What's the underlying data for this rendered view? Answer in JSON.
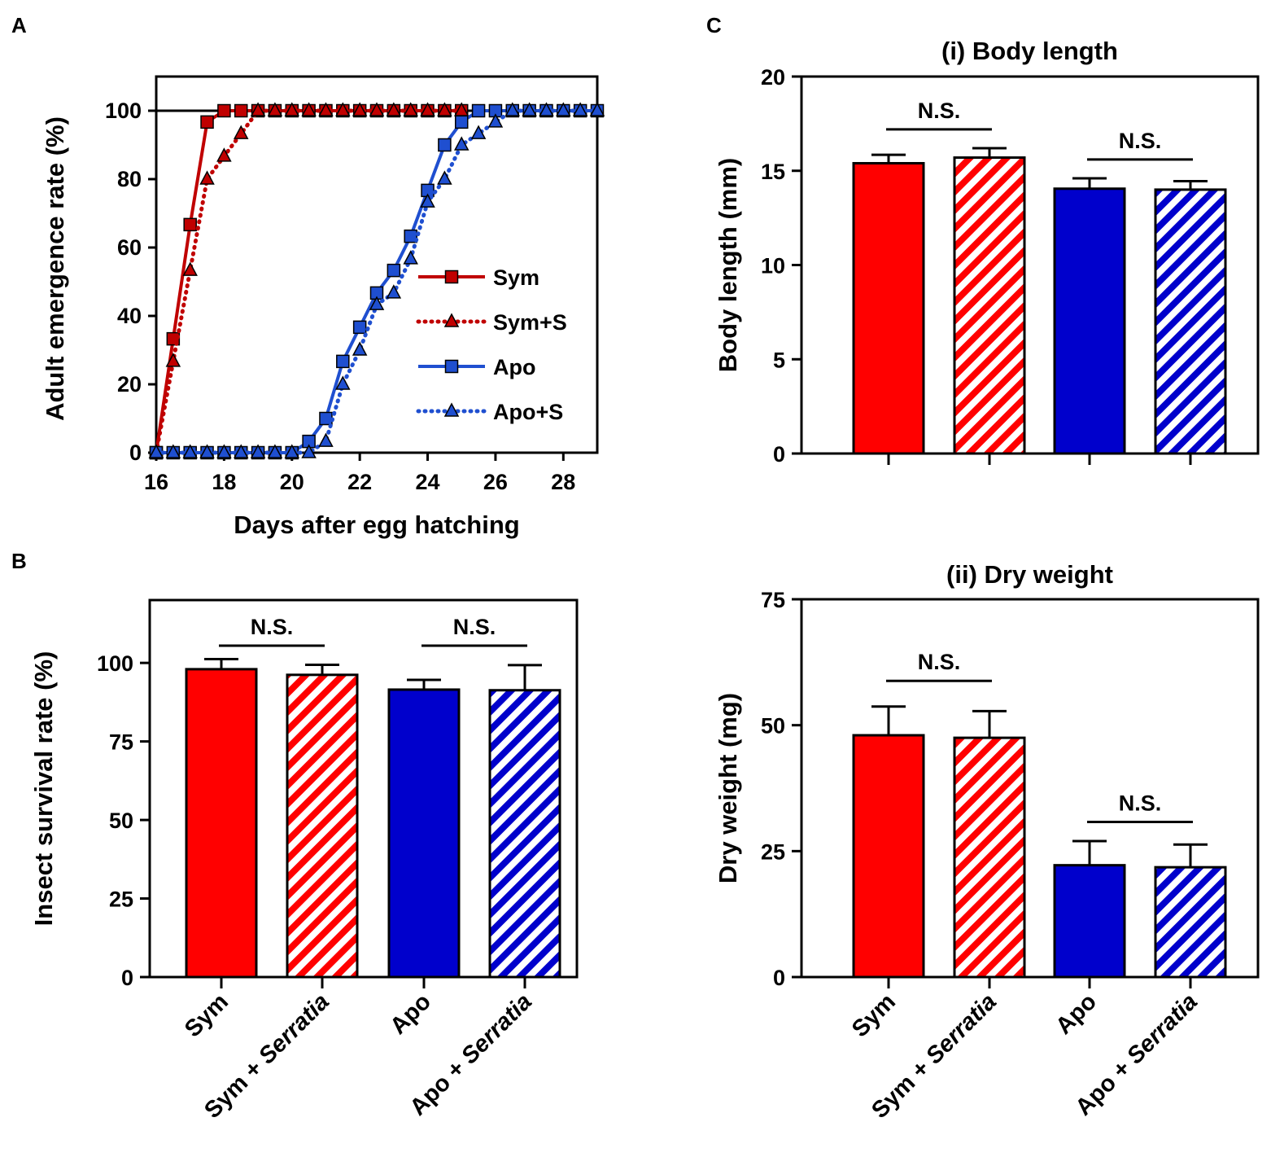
{
  "figure": {
    "panel_letters": [
      "A",
      "B",
      "C"
    ],
    "colors": {
      "sym": "#ff0000",
      "apo": "#0000cc",
      "sym_line": "#c00000",
      "apo_line": "#1f4fd0",
      "stripe_bg": "#ffffff"
    }
  },
  "chart_data": [
    {
      "id": "A",
      "type": "line",
      "title": "",
      "xlabel": "Days after egg hatching",
      "ylabel": "Adult emergence rate (%)",
      "xlim": [
        16,
        29
      ],
      "ylim": [
        0,
        110
      ],
      "xticks": [
        16,
        18,
        20,
        22,
        24,
        26,
        28
      ],
      "yticks": [
        0,
        20,
        40,
        60,
        80,
        100
      ],
      "reference_line": 100,
      "legend_position": "right",
      "series": [
        {
          "name": "Sym",
          "style": "solid",
          "marker": "square",
          "color": "#c00000",
          "x": [
            16,
            16.5,
            17,
            17.5,
            18,
            18.5,
            19,
            19.5,
            20,
            20.5,
            21,
            21.5,
            22,
            22.5,
            23,
            23.5,
            24,
            24.5,
            25
          ],
          "y": [
            0,
            33.3,
            66.7,
            96.7,
            100,
            100,
            100,
            100,
            100,
            100,
            100,
            100,
            100,
            100,
            100,
            100,
            100,
            100,
            100
          ]
        },
        {
          "name": "Sym+S",
          "style": "dotted",
          "marker": "triangle",
          "color": "#c00000",
          "x": [
            16,
            16.5,
            17,
            17.5,
            18,
            18.5,
            19,
            19.5,
            20,
            20.5,
            21,
            21.5,
            22,
            22.5,
            23,
            23.5,
            24,
            24.5,
            25
          ],
          "y": [
            0,
            26.7,
            53.3,
            80,
            86.7,
            93.3,
            100,
            100,
            100,
            100,
            100,
            100,
            100,
            100,
            100,
            100,
            100,
            100,
            100
          ]
        },
        {
          "name": "Apo",
          "style": "solid",
          "marker": "square",
          "color": "#1f4fd0",
          "x": [
            16,
            16.5,
            17,
            17.5,
            18,
            18.5,
            19,
            19.5,
            20,
            20.5,
            21,
            21.5,
            22,
            22.5,
            23,
            23.5,
            24,
            24.5,
            25,
            25.5,
            26,
            26.5,
            27,
            27.5,
            28,
            28.5,
            29
          ],
          "y": [
            0,
            0,
            0,
            0,
            0,
            0,
            0,
            0,
            0,
            3.3,
            10,
            26.7,
            36.7,
            46.7,
            53.3,
            63.3,
            76.7,
            90,
            96.7,
            100,
            100,
            100,
            100,
            100,
            100,
            100,
            100
          ]
        },
        {
          "name": "Apo+S",
          "style": "dotted",
          "marker": "triangle",
          "color": "#1f4fd0",
          "x": [
            16,
            16.5,
            17,
            17.5,
            18,
            18.5,
            19,
            19.5,
            20,
            20.5,
            21,
            21.5,
            22,
            22.5,
            23,
            23.5,
            24,
            24.5,
            25,
            25.5,
            26,
            26.5,
            27,
            27.5,
            28,
            28.5,
            29
          ],
          "y": [
            0,
            0,
            0,
            0,
            0,
            0,
            0,
            0,
            0,
            0,
            3.3,
            20,
            30,
            43.3,
            46.7,
            56.7,
            73.3,
            80,
            90,
            93.3,
            96.7,
            100,
            100,
            100,
            100,
            100,
            100
          ]
        }
      ]
    },
    {
      "id": "B",
      "type": "bar",
      "title": "",
      "xlabel": "",
      "ylabel": "Insect survival rate (%)",
      "ylim": [
        0,
        120
      ],
      "yticks": [
        0,
        25,
        50,
        75,
        100
      ],
      "show_category_labels": true,
      "categories": [
        {
          "prefix": "Sym",
          "suffix": ""
        },
        {
          "prefix": "Sym + ",
          "suffix": "Serratia"
        },
        {
          "prefix": "Apo",
          "suffix": ""
        },
        {
          "prefix": "Apo + ",
          "suffix": "Serratia"
        }
      ],
      "values": [
        98,
        96.2,
        91.5,
        91.3
      ],
      "errors": [
        3.2,
        3.2,
        3.1,
        8
      ],
      "fills": [
        "red-solid",
        "red-stripe",
        "blue-solid",
        "blue-stripe"
      ],
      "significance": [
        {
          "from": 0,
          "to": 1,
          "y": 105.5,
          "label": "N.S."
        },
        {
          "from": 2,
          "to": 3,
          "y": 105.5,
          "label": "N.S."
        }
      ]
    },
    {
      "id": "C-i",
      "type": "bar",
      "title": "(i) Body length",
      "xlabel": "",
      "ylabel": "Body length (mm)",
      "ylim": [
        0,
        20
      ],
      "yticks": [
        0,
        5,
        10,
        15,
        20
      ],
      "show_category_labels": false,
      "categories": [
        {
          "prefix": "Sym",
          "suffix": ""
        },
        {
          "prefix": "Sym + ",
          "suffix": "Serratia"
        },
        {
          "prefix": "Apo",
          "suffix": ""
        },
        {
          "prefix": "Apo + ",
          "suffix": "Serratia"
        }
      ],
      "values": [
        15.4,
        15.7,
        14.05,
        14.0
      ],
      "errors": [
        0.45,
        0.5,
        0.55,
        0.45
      ],
      "fills": [
        "red-solid",
        "red-stripe",
        "blue-solid",
        "blue-stripe"
      ],
      "significance": [
        {
          "from": 0,
          "to": 1,
          "y": 17.2,
          "label": "N.S."
        },
        {
          "from": 2,
          "to": 3,
          "y": 15.6,
          "label": "N.S."
        }
      ]
    },
    {
      "id": "C-ii",
      "type": "bar",
      "title": "(ii) Dry weight",
      "xlabel": "",
      "ylabel": "Dry weight (mg)",
      "ylim": [
        0,
        75
      ],
      "yticks": [
        0,
        25,
        50,
        75
      ],
      "show_category_labels": true,
      "categories": [
        {
          "prefix": "Sym",
          "suffix": ""
        },
        {
          "prefix": "Sym + ",
          "suffix": "Serratia"
        },
        {
          "prefix": "Apo",
          "suffix": ""
        },
        {
          "prefix": "Apo + ",
          "suffix": "Serratia"
        }
      ],
      "values": [
        48,
        47.5,
        22.2,
        21.8
      ],
      "errors": [
        5.7,
        5.3,
        4.8,
        4.5
      ],
      "fills": [
        "red-solid",
        "red-stripe",
        "blue-solid",
        "blue-stripe"
      ],
      "significance": [
        {
          "from": 0,
          "to": 1,
          "y": 58.8,
          "label": "N.S."
        },
        {
          "from": 2,
          "to": 3,
          "y": 30.8,
          "label": "N.S."
        }
      ]
    }
  ]
}
